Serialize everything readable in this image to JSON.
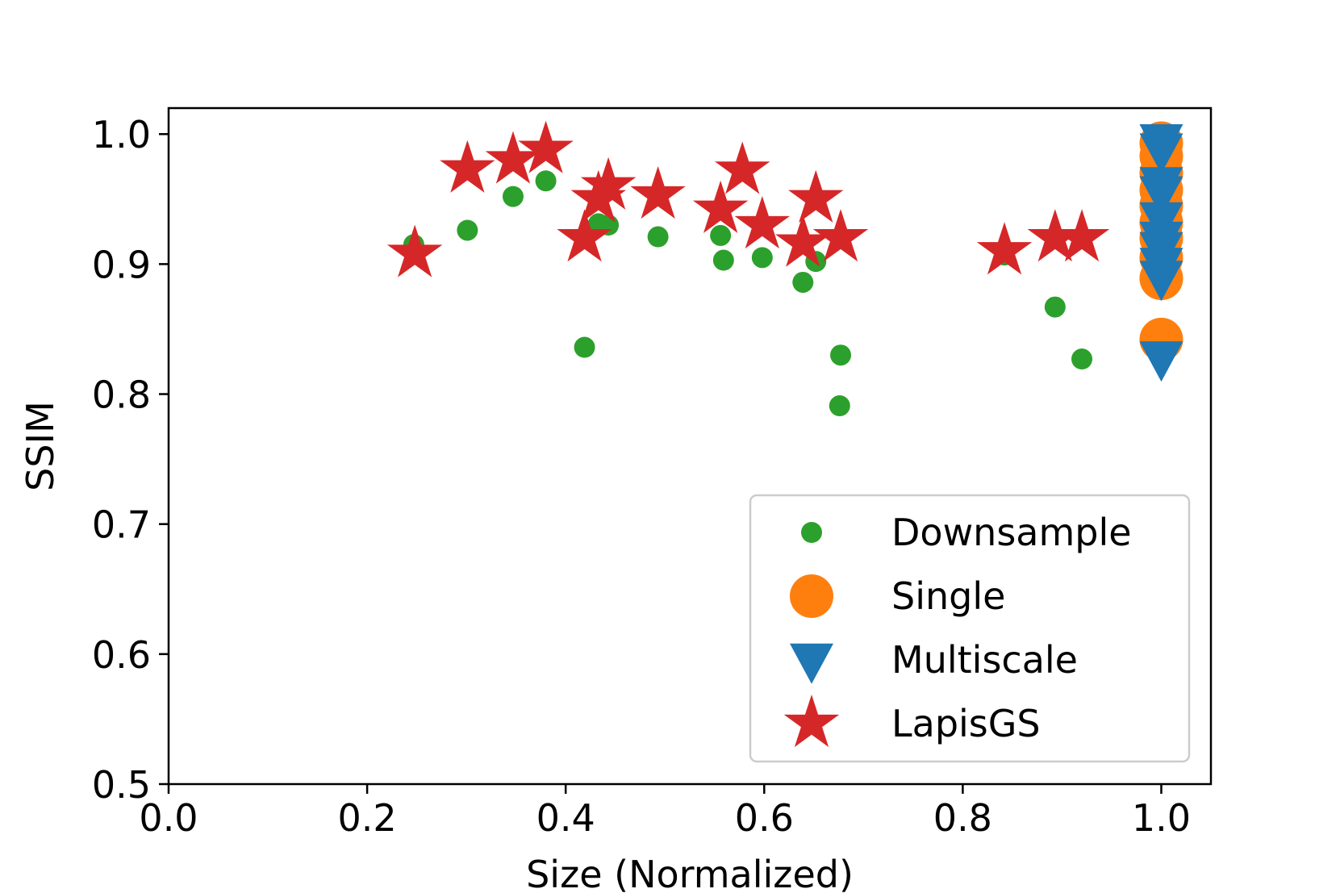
{
  "chart_data": {
    "type": "scatter",
    "xlabel": "Size (Normalized)",
    "ylabel": "SSIM",
    "xlim": [
      0.0,
      1.05
    ],
    "ylim": [
      0.5,
      1.02
    ],
    "x_ticks": [
      0.0,
      0.2,
      0.4,
      0.6,
      0.8,
      1.0
    ],
    "x_tick_labels": [
      "0.0",
      "0.2",
      "0.4",
      "0.6",
      "0.8",
      "1.0"
    ],
    "y_ticks": [
      0.5,
      0.6,
      0.7,
      0.8,
      0.9,
      1.0
    ],
    "y_tick_labels": [
      "0.5",
      "0.6",
      "0.7",
      "0.8",
      "0.9",
      "1.0"
    ],
    "grid": false,
    "legend_position": "lower-right",
    "series": [
      {
        "name": "Downsample",
        "marker": "circle",
        "color": "#2ca02c",
        "points": [
          [
            0.247,
            0.915
          ],
          [
            0.301,
            0.926
          ],
          [
            0.347,
            0.952
          ],
          [
            0.38,
            0.964
          ],
          [
            0.419,
            0.836
          ],
          [
            0.433,
            0.931
          ],
          [
            0.443,
            0.93
          ],
          [
            0.493,
            0.921
          ],
          [
            0.556,
            0.922
          ],
          [
            0.559,
            0.903
          ],
          [
            0.598,
            0.905
          ],
          [
            0.639,
            0.886
          ],
          [
            0.652,
            0.902
          ],
          [
            0.676,
            0.791
          ],
          [
            0.677,
            0.83
          ],
          [
            0.842,
            0.907
          ],
          [
            0.893,
            0.867
          ],
          [
            0.92,
            0.827
          ]
        ]
      },
      {
        "name": "Single",
        "marker": "circle-large",
        "color": "#ff7f0e",
        "points": [
          [
            1.0,
            0.993
          ],
          [
            1.0,
            0.983
          ],
          [
            1.0,
            0.97
          ],
          [
            1.0,
            0.957
          ],
          [
            1.0,
            0.945
          ],
          [
            1.0,
            0.932
          ],
          [
            1.0,
            0.92
          ],
          [
            1.0,
            0.905
          ],
          [
            1.0,
            0.889
          ],
          [
            1.0,
            0.842
          ]
        ]
      },
      {
        "name": "Multiscale",
        "marker": "triangle-down",
        "color": "#1f77b4",
        "points": [
          [
            1.0,
            0.995
          ],
          [
            1.0,
            0.988
          ],
          [
            1.0,
            0.962
          ],
          [
            1.0,
            0.955
          ],
          [
            1.0,
            0.935
          ],
          [
            1.0,
            0.92
          ],
          [
            1.0,
            0.912
          ],
          [
            1.0,
            0.9
          ],
          [
            1.0,
            0.89
          ],
          [
            1.0,
            0.828
          ]
        ]
      },
      {
        "name": "LapisGS",
        "marker": "star",
        "color": "#d62728",
        "points": [
          [
            0.248,
            0.908
          ],
          [
            0.301,
            0.973
          ],
          [
            0.347,
            0.98
          ],
          [
            0.38,
            0.988
          ],
          [
            0.419,
            0.92
          ],
          [
            0.433,
            0.95
          ],
          [
            0.443,
            0.96
          ],
          [
            0.493,
            0.953
          ],
          [
            0.556,
            0.942
          ],
          [
            0.578,
            0.972
          ],
          [
            0.598,
            0.93
          ],
          [
            0.639,
            0.916
          ],
          [
            0.652,
            0.95
          ],
          [
            0.677,
            0.92
          ],
          [
            0.842,
            0.91
          ],
          [
            0.893,
            0.92
          ],
          [
            0.92,
            0.92
          ]
        ]
      }
    ]
  }
}
